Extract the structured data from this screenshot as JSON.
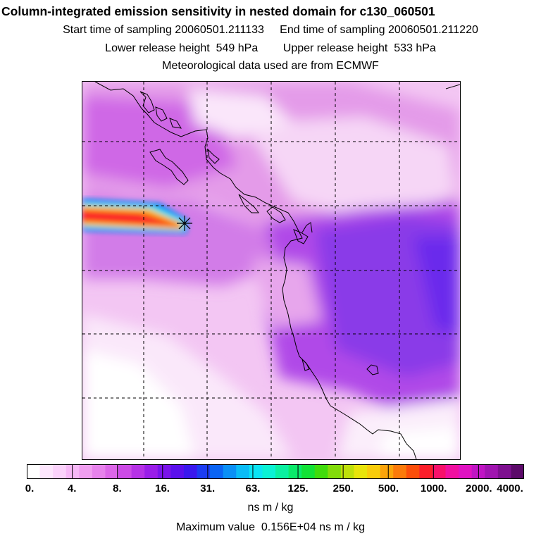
{
  "header": {
    "title": "Column-integrated emission sensitivity in nested domain for c130_060501",
    "sampling": "Start time of sampling 20060501.211133     End time of sampling 20060501.211220",
    "release": "Lower release height  549 hPa        Upper release height  533 hPa",
    "met": "Meteorological data used are from ECMWF"
  },
  "map": {
    "grid": "dashed lat/lon grid lines",
    "release_marker": "release point star",
    "coastline": "coastline",
    "plume": "high sensitivity plume"
  },
  "colorbar": {
    "tick_labels": [
      "0.",
      "4.",
      "8.",
      "16.",
      "31.",
      "63.",
      "125.",
      "250.",
      "500.",
      "1000.",
      "2000.",
      "4000."
    ],
    "units": "ns m / kg",
    "colors": [
      "#ffffff",
      "#fde6fd",
      "#fbd2fb",
      "#f7b8f7",
      "#f09ef0",
      "#e782ec",
      "#dc66e8",
      "#cc4ae6",
      "#b632e6",
      "#9a1ee8",
      "#7a14ea",
      "#5a10ec",
      "#3a18ee",
      "#1c3cf2",
      "#0a64f4",
      "#0a90f6",
      "#0abcf6",
      "#0ae4f4",
      "#0af2d4",
      "#0af0a0",
      "#0aea6a",
      "#12e236",
      "#40dc0c",
      "#82dc0a",
      "#bee00a",
      "#e8e40a",
      "#f8cc0a",
      "#fca40a",
      "#fc7a0a",
      "#fc4e0a",
      "#fc1e2a",
      "#f8106a",
      "#f010a0",
      "#e012c2",
      "#c014c4",
      "#a014b0",
      "#7e1090",
      "#5c0a6a"
    ],
    "max_value": "Maximum value  0.156E+04 ns m / kg"
  }
}
